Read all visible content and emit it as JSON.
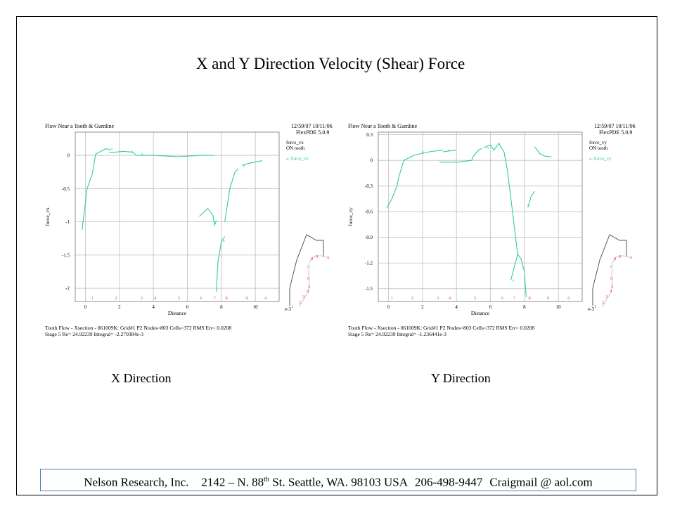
{
  "slide": {
    "title": "X and Y Direction Velocity (Shear) Force",
    "caption_x": "X Direction",
    "caption_y": "Y Direction"
  },
  "footer": {
    "company": "Nelson Research, Inc.",
    "address_number": "2142 – N. 88",
    "address_sup": "th",
    "address_rest": "St. Seattle, WA. 98103  USA",
    "phone": "206-498-9447",
    "email": "Craigmail @ aol.com"
  },
  "colors": {
    "curve": "#33cc99",
    "marker": "#ff3b3b",
    "grid": "#bfbfbf",
    "footer_border": "#4a78c0"
  },
  "chart_data": [
    {
      "type": "line",
      "title": "Flow Near a Tooth & Gumline",
      "stamp_line1": "12/59/07 10/11/06",
      "stamp_line2": "FlexPDE 5.0.9",
      "legend_line1": "force_vx",
      "legend_line2": "ON tooth",
      "legend_entry": "a: force_vx",
      "legend_position": "right",
      "xlabel": "Distance",
      "x_unit": "e-3",
      "ylabel": "force_vx",
      "grid": true,
      "xlim": [
        -0.6,
        11.4
      ],
      "ylim": [
        -2.2,
        0.35
      ],
      "xticks": [
        0,
        2,
        4,
        6,
        8,
        10
      ],
      "yticks": [
        0,
        -0.5,
        -1,
        -1.5,
        -2
      ],
      "ytick_labels": [
        "0",
        "-0.5",
        "-1",
        "-1.5",
        "-2"
      ],
      "marker_labels": [
        "1",
        "2",
        "3",
        "4",
        "5",
        "6",
        "7",
        "8",
        "9",
        "A"
      ],
      "marker_x": [
        0.4,
        1.8,
        3.3,
        4.1,
        5.5,
        6.8,
        7.6,
        8.3,
        9.5,
        10.6
      ],
      "series": [
        {
          "name": "a",
          "segments": [
            [
              [
                -0.2,
                -1.12
              ],
              [
                0.1,
                -0.5
              ],
              [
                0.4,
                -0.28
              ],
              [
                0.6,
                0.02
              ],
              [
                0.9,
                0.06
              ],
              [
                1.2,
                0.1
              ],
              [
                1.5,
                0.08
              ]
            ],
            [
              [
                1.4,
                0.04
              ],
              [
                2.2,
                0.06
              ],
              [
                2.8,
                0.05
              ],
              [
                3.0,
                0.0
              ],
              [
                4.0,
                0.0
              ],
              [
                5.5,
                -0.02
              ],
              [
                6.8,
                0.0
              ],
              [
                7.6,
                0.0
              ]
            ],
            [
              [
                6.7,
                -0.92
              ],
              [
                7.0,
                -0.85
              ],
              [
                7.2,
                -0.8
              ],
              [
                7.5,
                -0.9
              ],
              [
                7.6,
                -1.05
              ],
              [
                7.7,
                -0.98
              ]
            ],
            [
              [
                7.7,
                -2.05
              ],
              [
                7.8,
                -1.6
              ],
              [
                8.0,
                -1.3
              ],
              [
                8.2,
                -1.22
              ]
            ],
            [
              [
                8.2,
                -1.0
              ],
              [
                8.5,
                -0.5
              ],
              [
                8.8,
                -0.25
              ],
              [
                9.0,
                -0.2
              ]
            ],
            [
              [
                9.2,
                -0.15
              ],
              [
                9.6,
                -0.12
              ],
              [
                10.0,
                -0.1
              ],
              [
                10.4,
                -0.08
              ]
            ]
          ]
        }
      ],
      "point_labels": [
        {
          "x": 1.4,
          "y": 0.1,
          "text": "a"
        },
        {
          "x": 3.2,
          "y": 0.02,
          "text": "a"
        },
        {
          "x": 8.0,
          "y": -1.28,
          "text": "a"
        },
        {
          "x": 9.2,
          "y": -0.15,
          "text": "a"
        },
        {
          "x": 2.6,
          "y": 0.06,
          "text": "a"
        }
      ],
      "info_line1": "Tooth Flow - Xsection - 061009K:  Grid#1  P2  Nodes=803  Cells=372  RMS Err= 0.0208",
      "info_line2": "Stage 5   Re=  24.92239   Integral= -2.270384e-3",
      "inset_labels": [
        "1",
        "2",
        "3",
        "4",
        "5",
        "6",
        "7",
        "8",
        "9",
        "A"
      ]
    },
    {
      "type": "line",
      "title": "Flow Near a Tooth & Gumline",
      "stamp_line1": "12/59/07 10/11/06",
      "stamp_line2": "FlexPDE 5.0.9",
      "legend_line1": "force_vy",
      "legend_line2": "ON tooth",
      "legend_entry": "a: force_vy",
      "legend_position": "right",
      "xlabel": "Distance",
      "x_unit": "e-3",
      "ylabel": "force_vy",
      "grid": true,
      "xlim": [
        -0.6,
        11.4
      ],
      "ylim": [
        -1.65,
        0.33
      ],
      "xticks": [
        0,
        2,
        4,
        6,
        8,
        10
      ],
      "yticks": [
        0.3,
        0,
        -0.3,
        -0.6,
        -0.9,
        -1.2,
        -1.5
      ],
      "ytick_labels": [
        "0.3",
        "0",
        "-0.3",
        "-0.6",
        "-0.9",
        "-1.2",
        "-1.5"
      ],
      "marker_labels": [
        "1",
        "2",
        "3",
        "4",
        "5",
        "6",
        "7",
        "8",
        "9",
        "A"
      ],
      "marker_x": [
        0.2,
        1.4,
        2.9,
        3.6,
        5.1,
        6.7,
        7.4,
        8.3,
        9.4,
        10.6
      ],
      "series": [
        {
          "name": "a",
          "segments": [
            [
              [
                -0.1,
                -0.56
              ],
              [
                0.2,
                -0.45
              ],
              [
                0.5,
                -0.3
              ],
              [
                0.6,
                -0.2
              ],
              [
                0.9,
                0.0
              ],
              [
                1.5,
                0.06
              ],
              [
                2.4,
                0.1
              ],
              [
                3.2,
                0.12
              ]
            ],
            [
              [
                3.2,
                0.1
              ],
              [
                4.0,
                0.12
              ]
            ],
            [
              [
                3.0,
                -0.02
              ],
              [
                4.2,
                -0.02
              ],
              [
                4.5,
                -0.01
              ],
              [
                4.9,
                0.0
              ],
              [
                5.0,
                0.05
              ],
              [
                5.3,
                0.12
              ],
              [
                5.5,
                0.14
              ]
            ],
            [
              [
                5.6,
                0.15
              ],
              [
                6.0,
                0.18
              ],
              [
                6.2,
                0.12
              ],
              [
                6.5,
                0.2
              ],
              [
                6.6,
                0.16
              ],
              [
                6.8,
                0.1
              ],
              [
                7.0,
                -0.12
              ],
              [
                7.3,
                -0.6
              ],
              [
                7.6,
                -1.1
              ]
            ],
            [
              [
                7.2,
                -1.4
              ],
              [
                7.6,
                -1.1
              ],
              [
                7.8,
                -1.15
              ],
              [
                8.0,
                -1.3
              ],
              [
                8.1,
                -1.6
              ]
            ],
            [
              [
                8.2,
                -0.55
              ],
              [
                8.4,
                -0.42
              ],
              [
                8.6,
                -0.36
              ]
            ],
            [
              [
                8.6,
                0.16
              ],
              [
                8.9,
                0.08
              ],
              [
                9.2,
                0.05
              ],
              [
                9.6,
                0.04
              ]
            ]
          ]
        }
      ],
      "point_labels": [
        {
          "x": 1.9,
          "y": 0.1,
          "text": "a"
        },
        {
          "x": 3.4,
          "y": 0.12,
          "text": "a"
        },
        {
          "x": 5.7,
          "y": 0.15,
          "text": "a"
        },
        {
          "x": 7.2,
          "y": -1.4,
          "text": "a"
        },
        {
          "x": 8.1,
          "y": -0.52,
          "text": "a"
        }
      ],
      "info_line1": "Tooth Flow - Xsection - 061009K:  Grid#1  P2  Nodes=803  Cells=372  RMS Err= 0.0208",
      "info_line2": "Stage 5   Re=  24.92239   Integral= -1.236441e-3",
      "inset_labels": [
        "1",
        "2",
        "3",
        "4",
        "5",
        "6",
        "7",
        "8",
        "9",
        "A"
      ]
    }
  ]
}
